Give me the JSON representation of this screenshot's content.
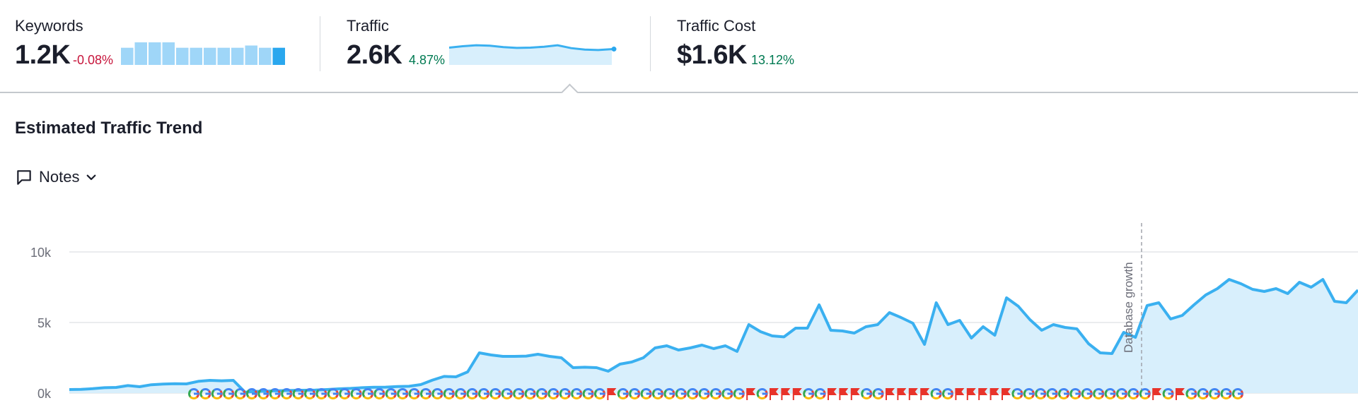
{
  "metrics": {
    "keywords": {
      "label": "Keywords",
      "value": "1.2K",
      "change": "-0.08%",
      "bars": [
        0.76,
        1.0,
        1.0,
        1.0,
        0.76,
        0.76,
        0.76,
        0.76,
        0.76,
        0.86,
        0.76,
        0.76
      ]
    },
    "traffic": {
      "label": "Traffic",
      "value": "2.6K",
      "change": "4.87%",
      "trend": [
        0.72,
        0.78,
        0.82,
        0.8,
        0.74,
        0.71,
        0.72,
        0.76,
        0.82,
        0.7,
        0.64,
        0.62,
        0.66
      ]
    },
    "traffic_cost": {
      "label": "Traffic Cost",
      "value": "$1.6K",
      "change": "13.12%"
    }
  },
  "section": {
    "title": "Estimated Traffic Trend"
  },
  "notes": {
    "label": "Notes",
    "icon": "comment-icon",
    "chevron": "chevron-down-icon"
  },
  "colors": {
    "line": "#3ab0f0",
    "area": "#d8effc",
    "google": [
      "#4285f4",
      "#ea4335",
      "#fbbc05",
      "#34a853"
    ],
    "flag": "#e8332a",
    "negative": "#c7153b",
    "positive": "#007a52"
  },
  "chart_data": {
    "type": "area",
    "yticks": [
      "10k",
      "5k",
      "0k"
    ],
    "ylim": [
      0,
      10000
    ],
    "annotation": "Database growth",
    "values": [
      250,
      260,
      310,
      380,
      400,
      530,
      450,
      590,
      640,
      660,
      650,
      830,
      900,
      870,
      900,
      60,
      120,
      140,
      170,
      190,
      200,
      210,
      250,
      300,
      330,
      380,
      410,
      420,
      460,
      480,
      600,
      920,
      1180,
      1150,
      1500,
      2850,
      2700,
      2600,
      2600,
      2620,
      2750,
      2600,
      2500,
      1800,
      1830,
      1800,
      1550,
      2050,
      2200,
      2500,
      3200,
      3350,
      3050,
      3200,
      3400,
      3150,
      3350,
      2950,
      4850,
      4350,
      4050,
      3980,
      4600,
      4600,
      6250,
      4450,
      4400,
      4250,
      4700,
      4850,
      5700,
      5350,
      4950,
      3450,
      6400,
      4850,
      5150,
      3900,
      4700,
      4100,
      6750,
      6150,
      5200,
      4450,
      4850,
      4650,
      4550,
      3500,
      2850,
      2800,
      4300,
      3950,
      6200,
      6400,
      5250,
      5500,
      6250,
      6950,
      7400,
      8050,
      7750,
      7350,
      7200,
      7400,
      7050,
      7850,
      7500,
      8050,
      6500,
      6400,
      7300
    ],
    "markers": [
      "G",
      "G",
      "G",
      "G",
      "G",
      "G",
      "G",
      "G",
      "G",
      "G",
      "G",
      "G",
      "G",
      "G",
      "G",
      "G",
      "G",
      "G",
      "G",
      "G",
      "G",
      "G",
      "G",
      "G",
      "G",
      "G",
      "G",
      "G",
      "G",
      "G",
      "G",
      "G",
      "G",
      "G",
      "G",
      "G",
      "F",
      "G",
      "G",
      "G",
      "G",
      "G",
      "G",
      "G",
      "G",
      "G",
      "G",
      "G",
      "F",
      "G",
      "F",
      "F",
      "F",
      "G",
      "G",
      "F",
      "F",
      "F",
      "G",
      "G",
      "F",
      "F",
      "F",
      "F",
      "G",
      "G",
      "F",
      "F",
      "F",
      "F",
      "F",
      "G",
      "G",
      "G",
      "G",
      "G",
      "G",
      "G",
      "G",
      "G",
      "G",
      "G",
      "G",
      "F",
      "G",
      "F",
      "G",
      "G",
      "G",
      "G",
      "G"
    ]
  }
}
